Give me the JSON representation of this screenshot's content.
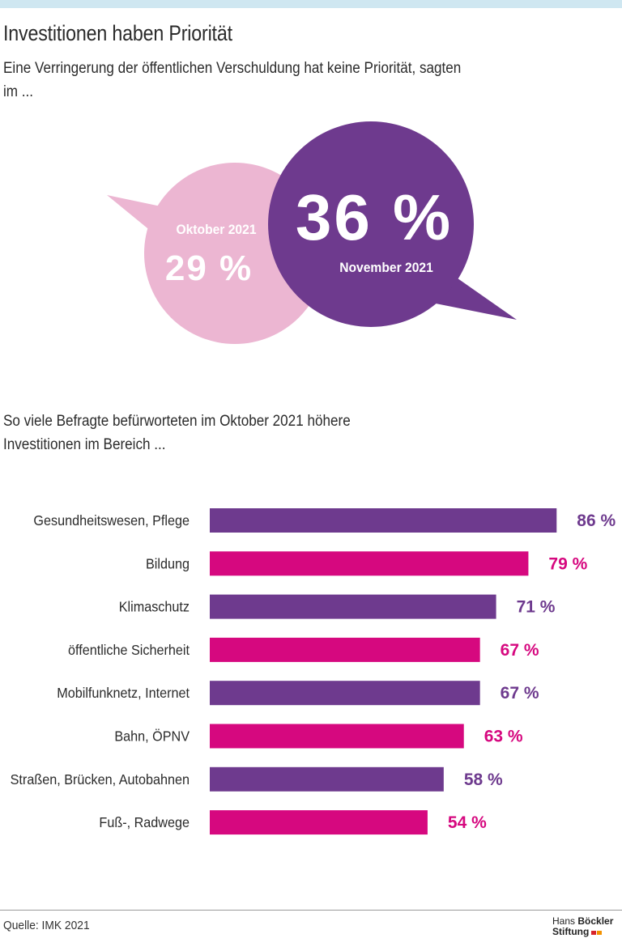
{
  "header": {
    "title": "Investitionen haben Priorität",
    "subtitle": "Eine Verringerung der öffentlichen Verschuldung hat keine Priorität, sagten im ..."
  },
  "bubbles": [
    {
      "month": "Oktober 2021",
      "value": "29 %",
      "color": "#ecb6d2"
    },
    {
      "month": "November 2021",
      "value": "36 %",
      "color": "#6e3a8e"
    }
  ],
  "chart_data": {
    "type": "bar",
    "orientation": "horizontal",
    "title": "So viele Befragte befürworteten im Oktober 2021 höhere Investitionen im Bereich ...",
    "categories": [
      "Gesundheitswesen, Pflege",
      "Bildung",
      "Klimaschutz",
      "öffentliche Sicherheit",
      "Mobilfunknetz, Internet",
      "Bahn, ÖPNV",
      "Straßen, Brücken, Autobahnen",
      "Fuß-, Radwege"
    ],
    "values": [
      86,
      79,
      71,
      67,
      67,
      63,
      58,
      54
    ],
    "value_labels": [
      "86 %",
      "79 %",
      "71 %",
      "67 %",
      "67 %",
      "63 %",
      "58 %",
      "54 %"
    ],
    "unit": "%",
    "xlim": [
      0,
      100
    ],
    "colors": [
      "#6e3a8e",
      "#d6087f",
      "#6e3a8e",
      "#d6087f",
      "#6e3a8e",
      "#d6087f",
      "#6e3a8e",
      "#d6087f"
    ],
    "grid": false,
    "legend": "none"
  },
  "footer": {
    "source": "Quelle: IMK 2021",
    "logo_line1_light": "Hans ",
    "logo_line1_bold": "Böckler",
    "logo_line2": "Stiftung",
    "logo_colors": [
      "#d8232a",
      "#f39200"
    ]
  }
}
